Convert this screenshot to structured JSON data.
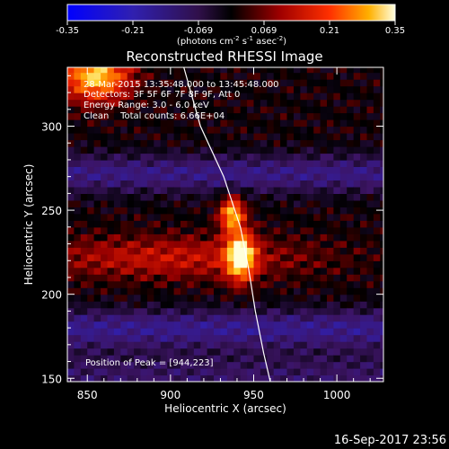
{
  "chart_data": {
    "type": "heatmap",
    "title": "Reconstructed RHESSI Image",
    "xlabel": "Heliocentric X (arcsec)",
    "ylabel": "Heliocentric Y (arcsec)",
    "xlim": [
      838,
      1028
    ],
    "ylim": [
      148,
      335
    ],
    "x_ticks": [
      850,
      900,
      950,
      1000
    ],
    "y_ticks": [
      150,
      200,
      250,
      300
    ],
    "grid": false,
    "colorbar": {
      "min": -0.35,
      "max": 0.35,
      "ticks": [
        "-0.35",
        "-0.21",
        "-0.069",
        "0.069",
        "0.21",
        "0.35"
      ],
      "units_text": "(photons cm",
      "units_sup1": "-2",
      "units_mid": " s",
      "units_sup2": "-1",
      "units_mid2": " asec",
      "units_sup3": "-2",
      "units_end": ")"
    },
    "annotations": {
      "time": "28-Mar-2015 13:35:48.000 to 13:45:48.000",
      "detectors": "Detectors: 3F 5F 6F 7F 8F 9F, Att 0",
      "energy": "Energy Range: 3.0 - 6.0 keV",
      "clean": "Clean    Total counts: 6.66E+04",
      "peak": "Position of Peak = [944,223]"
    },
    "footer_date": "16-Sep-2017 23:56",
    "limb_curve": [
      [
        908,
        335
      ],
      [
        918,
        300
      ],
      [
        932,
        270
      ],
      [
        942,
        240
      ],
      [
        947,
        215
      ],
      [
        951,
        190
      ],
      [
        956,
        165
      ],
      [
        960,
        148
      ]
    ],
    "sources": [
      {
        "x": 942,
        "y": 223,
        "sx": 6,
        "sy": 10,
        "amp": 0.36
      },
      {
        "x": 937,
        "y": 248,
        "sx": 5,
        "sy": 7,
        "amp": 0.3
      },
      {
        "x": 855,
        "y": 330,
        "sx": 14,
        "sy": 10,
        "amp": 0.32
      },
      {
        "x": 900,
        "y": 222,
        "sx": 60,
        "sy": 9,
        "amp": 0.12
      }
    ],
    "negative_bands": [
      {
        "y": 272,
        "sy": 8,
        "amp": -0.14
      },
      {
        "y": 180,
        "sy": 8,
        "amp": -0.15
      },
      {
        "y": 150,
        "sy": 12,
        "amp": -0.1
      }
    ]
  }
}
